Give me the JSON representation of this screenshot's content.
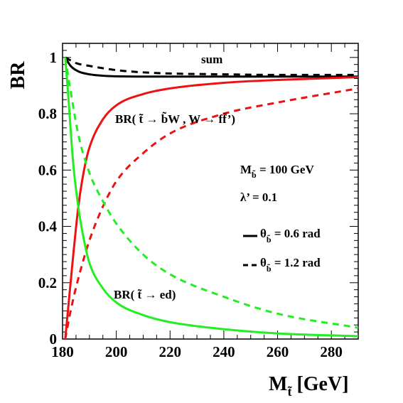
{
  "chart_data": {
    "type": "line",
    "ylabel": "BR",
    "xlabel": {
      "main": "M",
      "sub": "t̃",
      "rest": " [GeV]"
    },
    "xlim": [
      180,
      290
    ],
    "ylim": [
      0,
      1.05
    ],
    "x_ticks": [
      "180",
      "200",
      "220",
      "240",
      "260",
      "280"
    ],
    "y_ticks": [
      "0",
      "0.2",
      "0.4",
      "0.6",
      "0.8",
      "1"
    ],
    "grid": false,
    "series": [
      {
        "label_ref": "sum",
        "line": "solid",
        "color": "#000000",
        "x": [
          181,
          183,
          186,
          190,
          195,
          200,
          210,
          220,
          240,
          260,
          290
        ],
        "y": [
          1.0,
          0.97,
          0.95,
          0.94,
          0.935,
          0.933,
          0.932,
          0.932,
          0.932,
          0.932,
          0.932
        ]
      },
      {
        "label_ref": "sum",
        "line": "dashed",
        "color": "#000000",
        "x": [
          181,
          185,
          190,
          200,
          210,
          220,
          240,
          260,
          290
        ],
        "y": [
          1.0,
          0.98,
          0.97,
          0.955,
          0.947,
          0.943,
          0.94,
          0.938,
          0.938
        ]
      },
      {
        "label_ref": "BR_bW",
        "line": "solid",
        "color": "#ee1111",
        "x": [
          181,
          182,
          184,
          186,
          188,
          190,
          195,
          200,
          210,
          220,
          240,
          260,
          290
        ],
        "y": [
          0.0,
          0.1,
          0.3,
          0.48,
          0.6,
          0.68,
          0.78,
          0.83,
          0.87,
          0.89,
          0.91,
          0.92,
          0.93
        ]
      },
      {
        "label_ref": "BR_bW",
        "line": "dashed",
        "color": "#ee1111",
        "x": [
          181,
          183,
          186,
          190,
          195,
          200,
          210,
          220,
          240,
          260,
          290
        ],
        "y": [
          0.0,
          0.1,
          0.22,
          0.35,
          0.47,
          0.56,
          0.66,
          0.73,
          0.8,
          0.84,
          0.89
        ]
      },
      {
        "label_ref": "BR_ed",
        "line": "solid",
        "color": "#22ee22",
        "x": [
          181,
          182,
          184,
          186,
          188,
          190,
          195,
          200,
          210,
          220,
          240,
          260,
          290
        ],
        "y": [
          1.0,
          0.88,
          0.62,
          0.46,
          0.35,
          0.27,
          0.18,
          0.13,
          0.085,
          0.06,
          0.035,
          0.02,
          0.01
        ]
      },
      {
        "label_ref": "BR_ed",
        "line": "dashed",
        "color": "#22ee22",
        "x": [
          181,
          183,
          186,
          190,
          195,
          200,
          210,
          220,
          240,
          260,
          290
        ],
        "y": [
          1.0,
          0.88,
          0.72,
          0.59,
          0.49,
          0.41,
          0.3,
          0.23,
          0.15,
          0.09,
          0.04
        ]
      }
    ],
    "annotations": {
      "sum": "sum",
      "br_bw": {
        "prefix": "BR( ",
        "t": "t̃",
        "arrow1": " → ",
        "b": "b̃",
        "rest": "W , W → ff̄’)"
      },
      "br_ed": {
        "prefix": "BR( ",
        "t": "t̃",
        "rest": " → ed)"
      },
      "mass": {
        "main": "M",
        "sub": "b̃",
        "rest": " = 100 GeV"
      },
      "lambda": "λ’ = 0.1",
      "legend_solid": {
        "theta": "θ",
        "sub": "b̃",
        "rest": " = 0.6 rad"
      },
      "legend_dashed": {
        "theta": "θ",
        "sub": "b̃",
        "rest": " = 1.2 rad"
      }
    }
  }
}
